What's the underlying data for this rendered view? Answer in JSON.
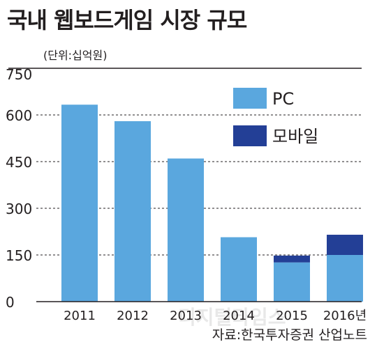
{
  "title": "국내 웹보드게임 시장 규모",
  "unit_note": "(단위:십억원)",
  "source": "자료:한국투자증권 산업노트",
  "watermark": "디지털타임스",
  "colors": {
    "pc": "#5aa7de",
    "mobile": "#233f96",
    "axis": "#231f20",
    "grid": "#231f20"
  },
  "chart_data": {
    "type": "bar",
    "stacked": true,
    "categories": [
      "2011",
      "2012",
      "2013",
      "2014",
      "2015",
      "2016년"
    ],
    "series": [
      {
        "name": "PC",
        "values": [
          633,
          580,
          460,
          207,
          126,
          150
        ]
      },
      {
        "name": "모바일",
        "values": [
          0,
          0,
          0,
          0,
          22,
          65
        ]
      }
    ],
    "yticks": [
      "0",
      "150",
      "300",
      "450",
      "600",
      "750"
    ],
    "ylim": [
      0,
      750
    ],
    "grid": true,
    "legend": "top-right"
  }
}
